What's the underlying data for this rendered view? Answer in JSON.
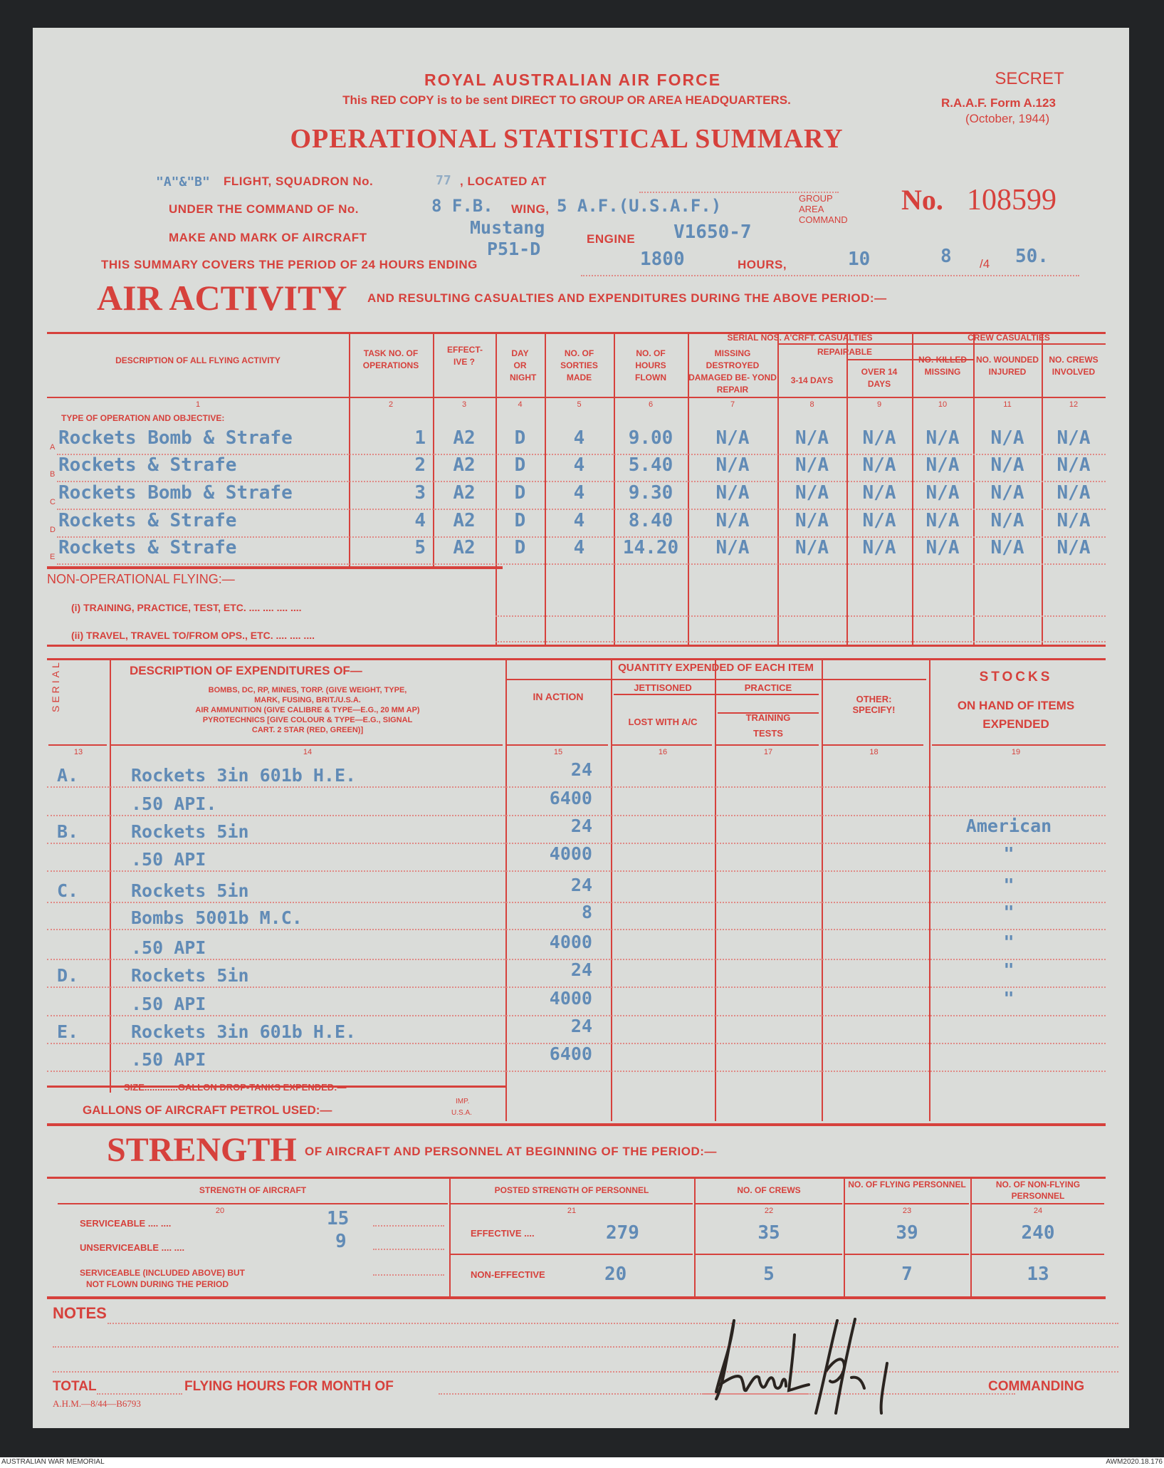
{
  "header": {
    "org": "ROYAL AUSTRALIAN AIR FORCE",
    "instruction": "This RED COPY is to be sent DIRECT TO GROUP OR AREA HEADQUARTERS.",
    "classification": "SECRET",
    "form_id": "R.A.A.F. Form A.123",
    "form_date": "(October, 1944)",
    "title": "OPERATIONAL STATISTICAL SUMMARY",
    "serial_prefix": "No.",
    "serial_number": "108599"
  },
  "particulars": {
    "flight_value": "\"A\"&\"B\"",
    "flight_label": "FLIGHT, SQUADRON No.",
    "squadron_value": "77",
    "located_label": ", LOCATED AT",
    "located_value": "",
    "command_label": "UNDER THE COMMAND OF No.",
    "command_value_1": "8 F.B.",
    "wing_label": "WING,",
    "command_value_2": "5 A.F.(U.S.A.F.)",
    "group_label": "GROUP",
    "area_label": "AREA",
    "command_suffix": "COMMAND",
    "aircraft_label": "MAKE AND MARK OF AIRCRAFT",
    "aircraft_value_1": "Mustang",
    "aircraft_value_2": "P51-D",
    "engine_label": "ENGINE",
    "engine_value": "V1650-7",
    "period_label": "THIS SUMMARY COVERS THE PERIOD OF 24 HOURS ENDING",
    "period_hours": "1800",
    "hours_label": "HOURS,",
    "day": "10",
    "month": "8",
    "year_prefix": "/4",
    "year": "50."
  },
  "air_activity": {
    "title": "AIR ACTIVITY",
    "subtitle": "AND RESULTING CASUALTIES AND EXPENDITURES DURING THE ABOVE PERIOD:—",
    "headers": {
      "desc": "DESCRIPTION OF ALL FLYING ACTIVITY",
      "task": "TASK NO. OF OPERATIONS",
      "effective": "EFFECT- IVE ?",
      "day_night": "DAY OR NIGHT",
      "sorties": "NO. OF SORTIES MADE",
      "hours": "NO. OF HOURS FLOWN",
      "aircraft_casualties": "SERIAL NOS. A'CRFT. CASUALTIES",
      "missing": "MISSING DESTROYED DAMAGED BE- YOND REPAIR",
      "repairable": "REPAIRABLE",
      "r3_14": "3-14 DAYS",
      "over14": "OVER 14 DAYS",
      "crew_casualties": "CREW CASUALTIES",
      "killed": "NO. KILLED MISSING",
      "wounded": "NO. WOUNDED INJURED",
      "crews": "NO. CREWS INVOLVED"
    },
    "column_numbers": [
      "1",
      "2",
      "3",
      "4",
      "5",
      "6",
      "7",
      "8",
      "9",
      "10",
      "11",
      "12"
    ],
    "type_label": "TYPE OF OPERATION AND OBJECTIVE:",
    "rows": [
      {
        "letter": "A",
        "desc": "Rockets Bomb & Strafe",
        "task": "1",
        "eff": "A2",
        "dn": "D",
        "sorties": "4",
        "hours": "9.00",
        "c7": "N/A",
        "c8": "N/A",
        "c9": "N/A",
        "c10": "N/A",
        "c11": "N/A",
        "c12": "N/A"
      },
      {
        "letter": "B",
        "desc": "Rockets & Strafe",
        "task": "2",
        "eff": "A2",
        "dn": "D",
        "sorties": "4",
        "hours": "5.40",
        "c7": "N/A",
        "c8": "N/A",
        "c9": "N/A",
        "c10": "N/A",
        "c11": "N/A",
        "c12": "N/A"
      },
      {
        "letter": "C",
        "desc": "Rockets Bomb & Strafe",
        "task": "3",
        "eff": "A2",
        "dn": "D",
        "sorties": "4",
        "hours": "9.30",
        "c7": "N/A",
        "c8": "N/A",
        "c9": "N/A",
        "c10": "N/A",
        "c11": "N/A",
        "c12": "N/A"
      },
      {
        "letter": "D",
        "desc": "Rockets & Strafe",
        "task": "4",
        "eff": "A2",
        "dn": "D",
        "sorties": "4",
        "hours": "8.40",
        "c7": "N/A",
        "c8": "N/A",
        "c9": "N/A",
        "c10": "N/A",
        "c11": "N/A",
        "c12": "N/A"
      },
      {
        "letter": "E",
        "desc": "Rockets & Strafe",
        "task": "5",
        "eff": "A2",
        "dn": "D",
        "sorties": "4",
        "hours": "14.20",
        "c7": "N/A",
        "c8": "N/A",
        "c9": "N/A",
        "c10": "N/A",
        "c11": "N/A",
        "c12": "N/A"
      }
    ],
    "non_operational": "NON-OPERATIONAL FLYING:—",
    "training": "(i) TRAINING, PRACTICE, TEST, ETC. .... .... .... ....",
    "travel": "(ii) TRAVEL, TRAVEL TO/FROM OPS., ETC. .... .... ...."
  },
  "expenditures": {
    "headers": {
      "serial": "SERIAL",
      "desc_title": "DESCRIPTION OF EXPENDITURES OF—",
      "desc_1": "BOMBS, DC, RP, MINES, TORP. (GIVE WEIGHT, TYPE,",
      "desc_2": "MARK, FUSING, BRIT./U.S.A.",
      "desc_3": "AIR AMMUNITION (GIVE CALIBRE & TYPE—E.G., 20 MM AP)",
      "desc_4": "PYROTECHNICS [GIVE COLOUR & TYPE—E.G., SIGNAL",
      "desc_5": "CART. 2 STAR (RED, GREEN)]",
      "quantity": "QUANTITY EXPENDED OF EACH ITEM",
      "in_action": "IN ACTION",
      "jettisoned": "JETTISONED",
      "lost": "LOST WITH A/C",
      "practice": "PRACTICE",
      "training": "TRAINING",
      "tests": "TESTS",
      "other": "OTHER: SPECIFY!",
      "stocks": "STOCKS",
      "stocks_sub": "ON HAND OF ITEMS EXPENDED"
    },
    "column_numbers": [
      "13",
      "14",
      "15",
      "16",
      "17",
      "18",
      "19"
    ],
    "rows": [
      {
        "serial": "A.",
        "desc": "Rockets 3in 601b H.E.",
        "in_action": "24",
        "stocks": ""
      },
      {
        "serial": "",
        "desc": ".50 API.",
        "in_action": "6400",
        "stocks": ""
      },
      {
        "serial": "B.",
        "desc": "Rockets 5in",
        "in_action": "24",
        "stocks": "American"
      },
      {
        "serial": "",
        "desc": ".50 API",
        "in_action": "4000",
        "stocks": "\""
      },
      {
        "serial": "C.",
        "desc": "Rockets 5in",
        "in_action": "24",
        "stocks": "\""
      },
      {
        "serial": "",
        "desc": "Bombs 5001b M.C.",
        "in_action": "8",
        "stocks": "\""
      },
      {
        "serial": "",
        "desc": ".50 API",
        "in_action": "4000",
        "stocks": "\""
      },
      {
        "serial": "D.",
        "desc": "Rockets 5in",
        "in_action": "24",
        "stocks": "\""
      },
      {
        "serial": "",
        "desc": ".50 API",
        "in_action": "4000",
        "stocks": "\""
      },
      {
        "serial": "E.",
        "desc": "Rockets 3in 601b H.E.",
        "in_action": "24",
        "stocks": ""
      },
      {
        "serial": "",
        "desc": ".50 API",
        "in_action": "6400",
        "stocks": ""
      }
    ],
    "drop_tanks": "SIZE.............GALLON DROP-TANKS EXPENDED:—",
    "petrol": "GALLONS OF AIRCRAFT PETROL USED:—",
    "petrol_imp": "IMP.",
    "petrol_usa": "U.S.A."
  },
  "strength": {
    "title": "STRENGTH",
    "subtitle": "OF AIRCRAFT AND PERSONNEL AT BEGINNING OF THE PERIOD:—",
    "headers": [
      "STRENGTH OF AIRCRAFT",
      "POSTED STRENGTH OF PERSONNEL",
      "NO. OF CREWS",
      "NO. OF FLYING PERSONNEL",
      "NO. OF NON-FLYING PERSONNEL"
    ],
    "column_numbers": [
      "20",
      "21",
      "22",
      "23",
      "24"
    ],
    "serviceable_label": "SERVICEABLE .... ....",
    "serviceable": "15",
    "unserviceable_label": "UNSERVICEABLE .... ....",
    "unserviceable": "9",
    "not_flown_label_1": "SERVICEABLE (INCLUDED ABOVE) BUT",
    "not_flown_label_2": "NOT FLOWN DURING THE PERIOD",
    "effective_label": "EFFECTIVE ....",
    "non_effective_label": "NON-EFFECTIVE",
    "effective": {
      "posted": "279",
      "crews": "35",
      "flying": "39",
      "non_flying": "240"
    },
    "non_effective": {
      "posted": "20",
      "crews": "5",
      "flying": "7",
      "non_flying": "13"
    }
  },
  "footer": {
    "notes": "NOTES",
    "total": "TOTAL",
    "flying_hours": "FLYING HOURS FOR MONTH OF",
    "commanding": "COMMANDING",
    "print_code": "A.H.M.—8/44—B6793",
    "signature": "Schmidt S/L"
  },
  "archive": {
    "left": "AUSTRALIAN WAR MEMORIAL",
    "right": "AWM2020.18.176"
  },
  "colors": {
    "print_red": "#d6413c",
    "typed_blue": "#4c7db0",
    "paper": "#dadcd9"
  }
}
